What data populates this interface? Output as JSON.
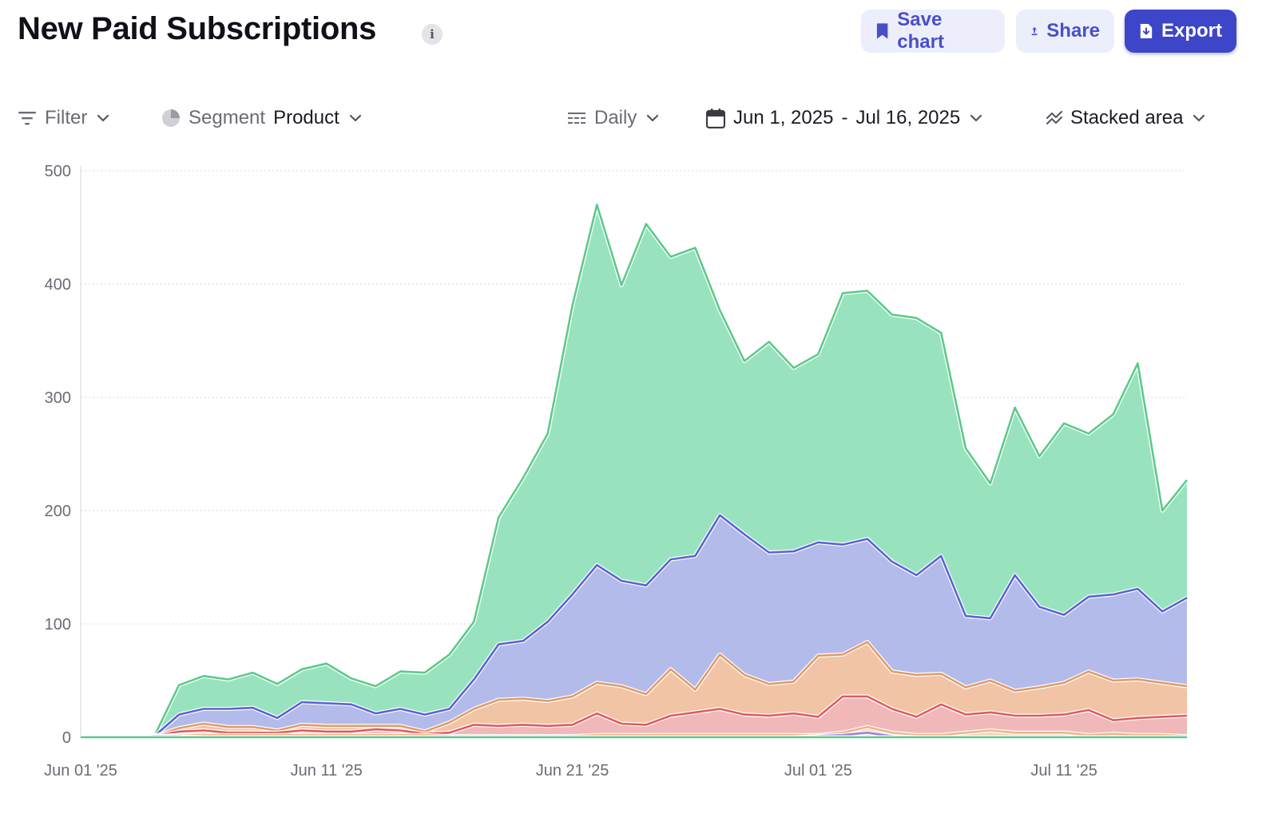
{
  "header": {
    "title": "New Paid Subscriptions",
    "info_glyph": "i",
    "buttons": {
      "save": "Save chart",
      "share": "Share",
      "export": "Export"
    }
  },
  "controls": {
    "filter_label": "Filter",
    "segment_label": "Segment",
    "segment_value": "Product",
    "interval": "Daily",
    "date_start": "Jun 1, 2025",
    "date_sep": "-",
    "date_end": "Jul 16, 2025",
    "chart_type": "Stacked area"
  },
  "colors": {
    "accent": "#3d45c9",
    "series": [
      "#5dc98a",
      "#5a63d6",
      "#e09b6b",
      "#e05a60",
      "#f0b48a",
      "#9b7fe0"
    ],
    "fills": [
      "#98e3be",
      "#b3bbea",
      "#f0c4a4",
      "#f0b8b8",
      "#f6d2bb",
      "#d7cff5"
    ]
  },
  "chart_data": {
    "type": "area",
    "stacked": true,
    "title": "New Paid Subscriptions",
    "xlabel": "",
    "ylabel": "",
    "ylim": [
      0,
      500
    ],
    "yticks": [
      0,
      100,
      200,
      300,
      400,
      500
    ],
    "x_tick_labels": [
      "Jun 01 '25",
      "Jun 11 '25",
      "Jun 21 '25",
      "Jul 01 '25",
      "Jul 11 '25"
    ],
    "x_tick_index": [
      0,
      10,
      20,
      30,
      40
    ],
    "grid": true,
    "legend": "none",
    "x": [
      "Jun 01",
      "Jun 02",
      "Jun 03",
      "Jun 04",
      "Jun 05",
      "Jun 06",
      "Jun 07",
      "Jun 08",
      "Jun 09",
      "Jun 10",
      "Jun 11",
      "Jun 12",
      "Jun 13",
      "Jun 14",
      "Jun 15",
      "Jun 16",
      "Jun 17",
      "Jun 18",
      "Jun 19",
      "Jun 20",
      "Jun 21",
      "Jun 22",
      "Jun 23",
      "Jun 24",
      "Jun 25",
      "Jun 26",
      "Jun 27",
      "Jun 28",
      "Jun 29",
      "Jun 30",
      "Jul 01",
      "Jul 02",
      "Jul 03",
      "Jul 04",
      "Jul 05",
      "Jul 06",
      "Jul 07",
      "Jul 08",
      "Jul 09",
      "Jul 10",
      "Jul 11",
      "Jul 12",
      "Jul 13",
      "Jul 14",
      "Jul 15",
      "Jul 16"
    ],
    "series": [
      {
        "values": [
          0,
          0,
          0,
          0,
          0,
          0,
          0,
          0,
          0,
          0,
          0,
          0,
          0,
          0,
          0,
          0,
          0,
          0,
          0,
          0,
          0,
          0,
          0,
          0,
          0,
          0,
          0,
          0,
          0,
          0,
          0,
          0,
          0,
          0,
          0,
          0,
          0,
          0,
          0,
          0,
          0,
          0,
          0,
          0,
          0,
          0
        ]
      },
      {
        "values": [
          0,
          0,
          0,
          1,
          1,
          0,
          0,
          0,
          0,
          0,
          0,
          0,
          0,
          0,
          0,
          0,
          0,
          0,
          0,
          0,
          0,
          0,
          0,
          0,
          0,
          0,
          0,
          0,
          0,
          0,
          1,
          2,
          4,
          1,
          0,
          0,
          0,
          0,
          0,
          0,
          0,
          0,
          0,
          0,
          0,
          0
        ]
      },
      {
        "values": [
          0,
          0,
          0,
          0,
          1,
          2,
          2,
          2,
          2,
          2,
          2,
          2,
          2,
          2,
          2,
          1,
          1,
          1,
          1,
          1,
          1,
          2,
          2,
          2,
          2,
          2,
          2,
          2,
          2,
          2,
          1,
          2,
          5,
          3,
          2,
          2,
          4,
          6,
          4,
          4,
          4,
          2,
          3,
          2,
          2,
          1
        ]
      },
      {
        "values": [
          0,
          0,
          0,
          0,
          3,
          4,
          2,
          2,
          2,
          4,
          3,
          3,
          5,
          4,
          1,
          3,
          10,
          9,
          10,
          9,
          10,
          19,
          10,
          9,
          17,
          20,
          23,
          18,
          17,
          19,
          16,
          32,
          27,
          21,
          16,
          27,
          16,
          16,
          15,
          15,
          16,
          22,
          12,
          15,
          16,
          18
        ]
      },
      {
        "values": [
          0,
          0,
          0,
          0,
          3,
          6,
          5,
          5,
          2,
          5,
          5,
          5,
          3,
          4,
          2,
          9,
          14,
          23,
          23,
          22,
          25,
          27,
          33,
          27,
          41,
          20,
          48,
          35,
          28,
          28,
          54,
          37,
          48,
          33,
          37,
          27,
          24,
          28,
          22,
          25,
          28,
          34,
          35,
          34,
          30,
          26
        ]
      },
      {
        "values": [
          0,
          0,
          0,
          0,
          12,
          13,
          16,
          17,
          11,
          20,
          20,
          19,
          11,
          15,
          15,
          12,
          26,
          49,
          51,
          70,
          90,
          104,
          93,
          96,
          97,
          118,
          123,
          124,
          116,
          115,
          100,
          97,
          91,
          97,
          88,
          104,
          63,
          55,
          102,
          71,
          60,
          66,
          76,
          80,
          63,
          78
        ]
      },
      {
        "values": [
          0,
          0,
          0,
          0,
          26,
          29,
          26,
          31,
          30,
          29,
          35,
          23,
          24,
          33,
          37,
          48,
          51,
          112,
          144,
          166,
          255,
          318,
          261,
          319,
          267,
          272,
          181,
          153,
          186,
          162,
          166,
          222,
          219,
          218,
          227,
          197,
          148,
          119,
          148,
          133,
          169,
          144,
          159,
          199,
          89,
          104
        ]
      }
    ]
  }
}
